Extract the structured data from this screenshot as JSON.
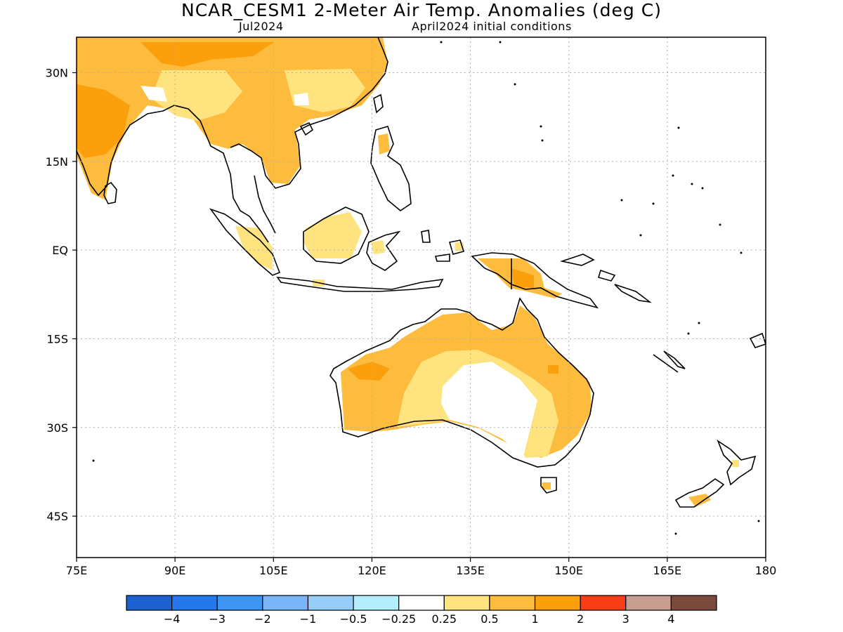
{
  "title": "NCAR_CESM1 2-Meter Air Temp. Anomalies (deg C)",
  "subtitle_left": "Jul2024",
  "subtitle_right": "April2024 initial conditions",
  "map": {
    "lon_range": [
      75,
      180
    ],
    "lat_range": [
      -52,
      36
    ],
    "lon_ticks": [
      "75E",
      "90E",
      "105E",
      "120E",
      "135E",
      "150E",
      "165E",
      "180"
    ],
    "lat_ticks": [
      "30N",
      "15N",
      "EQ",
      "15S",
      "30S",
      "45S"
    ],
    "lon_tick_values": [
      75,
      90,
      105,
      120,
      135,
      150,
      165,
      180
    ],
    "lat_tick_values": [
      30,
      15,
      0,
      -15,
      -30,
      -45
    ],
    "gridlines": true
  },
  "colorbar": {
    "colors": [
      "#1b62d0",
      "#2478ec",
      "#3d95f2",
      "#78b6f7",
      "#96cdf8",
      "#b2eefb",
      "#ffffff",
      "#fee37f",
      "#fdbc3d",
      "#fba00c",
      "#f83d17",
      "#c79e91",
      "#7a4b3d"
    ],
    "labels": [
      "-4",
      "-3",
      "-2",
      "-1",
      "-0.5",
      "-0.25",
      "0.25",
      "0.5",
      "1",
      "2",
      "3",
      "4"
    ]
  },
  "colors": {
    "anomaly_0_5": "#fee37f",
    "anomaly_1": "#fdbc3d",
    "anomaly_2": "#fba00c",
    "coastline": "#000000",
    "grid": "#b0b0b0"
  }
}
